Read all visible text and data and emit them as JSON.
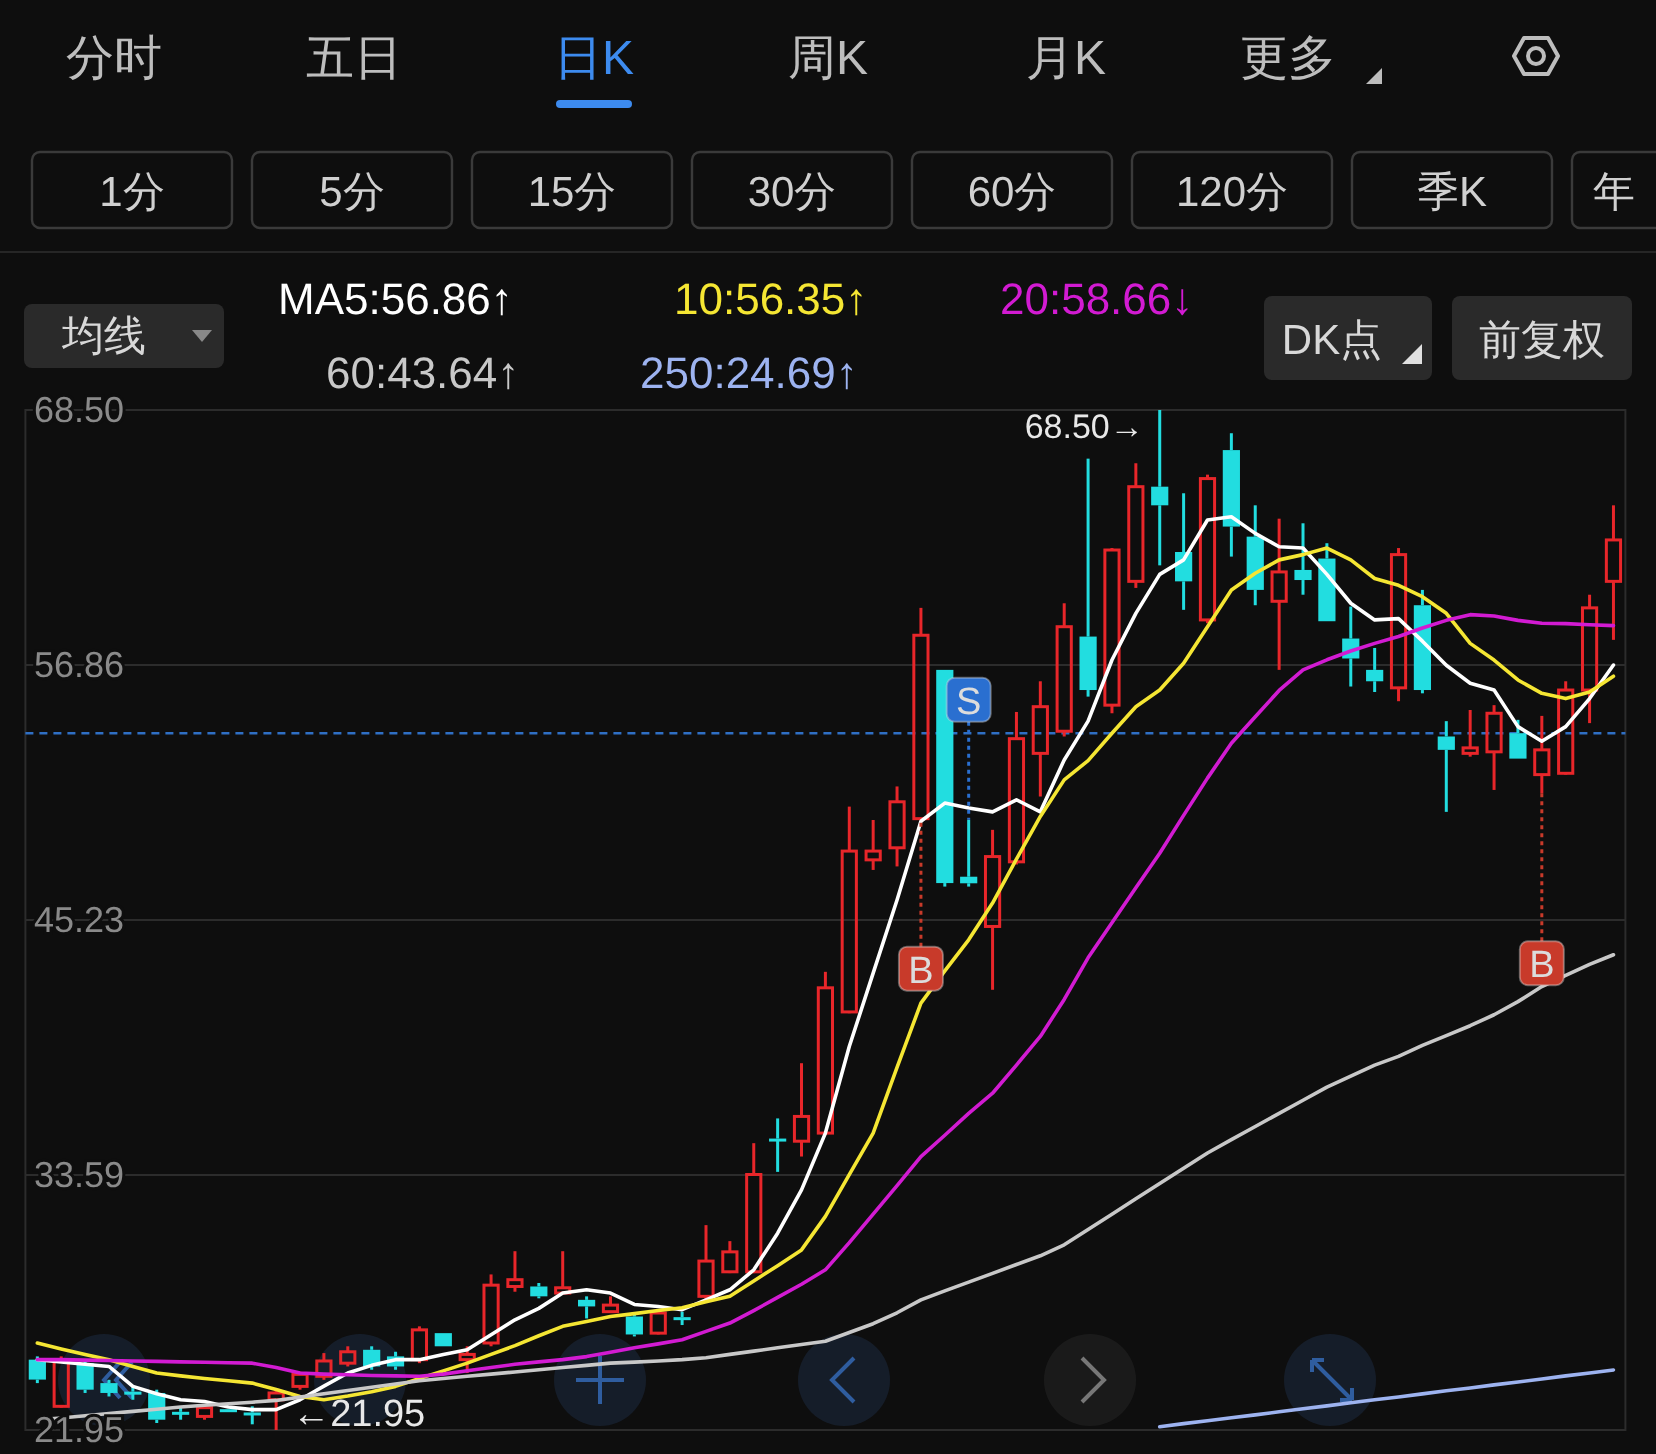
{
  "chart_data": {
    "type": "candlestick",
    "legend": "top",
    "grid": "y",
    "categories": [
      null,
      null,
      null,
      null,
      null,
      null,
      null,
      null,
      null,
      null,
      null,
      null,
      null,
      null,
      null,
      null,
      null,
      null,
      null,
      null,
      null,
      null,
      null,
      null,
      null,
      null,
      null,
      null,
      null,
      null,
      null,
      null,
      null,
      null,
      null,
      null,
      null,
      null,
      null,
      null,
      null,
      null,
      null,
      null,
      null,
      null,
      null,
      null,
      null,
      null,
      null,
      null,
      null,
      null,
      null,
      null,
      null,
      null,
      null,
      null,
      null,
      null,
      null,
      null,
      null,
      null,
      null
    ],
    "ohlc": [
      [
        25.16,
        25.31,
        24.09,
        24.25
      ],
      [
        23.03,
        25.31,
        22.97,
        25.16
      ],
      [
        25.0,
        25.16,
        23.64,
        23.79
      ],
      [
        24.09,
        24.24,
        23.48,
        23.64
      ],
      [
        23.7,
        23.94,
        23.33,
        23.64
      ],
      [
        23.64,
        23.79,
        22.27,
        22.42
      ],
      [
        22.78,
        23.03,
        22.42,
        22.72
      ],
      [
        22.57,
        23.09,
        22.42,
        22.97
      ],
      [
        22.9,
        22.9,
        22.85,
        22.85
      ],
      [
        22.75,
        23.03,
        22.21,
        22.7
      ],
      [
        23.33,
        23.79,
        21.95,
        23.64
      ],
      [
        23.94,
        24.61,
        23.79,
        24.49
      ],
      [
        24.4,
        25.46,
        24.24,
        25.1
      ],
      [
        25.0,
        25.77,
        24.85,
        25.52
      ],
      [
        25.61,
        25.77,
        24.7,
        24.85
      ],
      [
        25.31,
        25.52,
        24.7,
        24.85
      ],
      [
        25.16,
        26.68,
        25.0,
        26.52
      ],
      [
        26.37,
        26.37,
        25.77,
        25.77
      ],
      [
        25.16,
        25.77,
        24.55,
        25.4
      ],
      [
        25.92,
        29.05,
        25.77,
        28.56
      ],
      [
        28.5,
        30.11,
        28.26,
        28.81
      ],
      [
        28.5,
        28.66,
        27.96,
        28.05
      ],
      [
        28.2,
        30.11,
        28.14,
        28.44
      ],
      [
        27.89,
        28.05,
        27.04,
        27.59
      ],
      [
        27.35,
        28.05,
        27.29,
        27.65
      ],
      [
        27.13,
        27.23,
        26.22,
        26.31
      ],
      [
        26.37,
        27.44,
        26.31,
        27.29
      ],
      [
        27.1,
        27.35,
        26.74,
        27.04
      ],
      [
        28.05,
        31.3,
        27.89,
        29.66
      ],
      [
        29.17,
        30.57,
        29.11,
        30.08
      ],
      [
        29.17,
        35.04,
        29.11,
        33.61
      ],
      [
        35.25,
        36.17,
        33.73,
        35.19
      ],
      [
        35.13,
        38.69,
        34.43,
        36.26
      ],
      [
        35.5,
        42.86,
        35.41,
        42.13
      ],
      [
        41.03,
        50.4,
        40.97,
        48.37
      ],
      [
        47.97,
        49.79,
        47.51,
        48.37
      ],
      [
        48.52,
        51.32,
        47.67,
        50.62
      ],
      [
        49.85,
        59.47,
        49.85,
        58.22
      ],
      [
        56.64,
        56.64,
        46.75,
        46.91
      ],
      [
        47.2,
        49.8,
        46.75,
        46.9
      ],
      [
        44.93,
        49.34,
        42.04,
        48.12
      ],
      [
        47.88,
        54.72,
        47.76,
        53.5
      ],
      [
        52.83,
        56.12,
        50.86,
        54.96
      ],
      [
        53.84,
        59.68,
        53.6,
        58.61
      ],
      [
        58.16,
        66.28,
        55.42,
        55.72
      ],
      [
        55.03,
        62.2,
        54.66,
        62.11
      ],
      [
        60.68,
        66.07,
        60.38,
        65.0
      ],
      [
        65.0,
        68.5,
        61.41,
        64.15
      ],
      [
        62.02,
        64.7,
        59.38,
        60.68
      ],
      [
        58.92,
        65.55,
        58.77,
        65.37
      ],
      [
        66.67,
        67.44,
        61.81,
        63.18
      ],
      [
        62.72,
        64.15,
        59.59,
        60.29
      ],
      [
        59.77,
        63.54,
        56.64,
        61.11
      ],
      [
        61.2,
        63.33,
        60.07,
        60.74
      ],
      [
        61.72,
        62.42,
        58.86,
        58.86
      ],
      [
        58.07,
        59.53,
        55.88,
        57.16
      ],
      [
        56.64,
        57.64,
        55.63,
        56.12
      ],
      [
        55.82,
        62.2,
        55.21,
        61.9
      ],
      [
        59.59,
        60.29,
        55.57,
        55.72
      ],
      [
        53.6,
        54.3,
        50.16,
        52.99
      ],
      [
        52.83,
        54.81,
        52.68,
        53.08
      ],
      [
        52.9,
        55.03,
        51.16,
        54.66
      ],
      [
        53.75,
        54.36,
        52.59,
        52.59
      ],
      [
        51.86,
        54.54,
        51.01,
        52.99
      ],
      [
        51.92,
        56.12,
        51.86,
        55.72
      ],
      [
        55.72,
        60.07,
        54.21,
        59.47
      ],
      [
        60.68,
        64.15,
        58.01,
        62.57
      ]
    ],
    "series": [
      {
        "name": "MA5:56.86↑",
        "type": "line",
        "color": "#ffffff",
        "values": [
          25.16,
          25.05,
          24.95,
          24.85,
          23.94,
          23.6,
          23.33,
          23.25,
          23.0,
          22.88,
          22.88,
          23.33,
          23.95,
          24.55,
          24.9,
          25.16,
          25.16,
          25.4,
          25.61,
          26.3,
          26.98,
          27.5,
          28.2,
          28.35,
          28.2,
          27.68,
          27.59,
          27.44,
          27.89,
          28.35,
          29.26,
          30.93,
          32.91,
          35.5,
          39.45,
          42.8,
          46.14,
          49.73,
          50.56,
          50.34,
          50.16,
          50.71,
          50.16,
          52.53,
          54.3,
          57.09,
          59.22,
          61.0,
          61.66,
          63.48,
          63.63,
          62.87,
          62.26,
          62.2,
          61.0,
          59.68,
          58.92,
          58.98,
          57.95,
          56.85,
          56.03,
          55.72,
          54.05,
          53.38,
          54.05,
          55.33,
          56.86
        ]
      },
      {
        "name": "10:56.35↑",
        "type": "line",
        "color": "#f5e633",
        "values": [
          25.92,
          25.65,
          25.4,
          25.16,
          24.85,
          24.55,
          24.42,
          24.3,
          24.2,
          24.09,
          23.8,
          23.48,
          23.33,
          23.5,
          23.7,
          23.94,
          24.3,
          24.65,
          25.0,
          25.4,
          25.8,
          26.25,
          26.68,
          26.9,
          27.13,
          27.26,
          27.4,
          27.53,
          27.8,
          28.05,
          28.75,
          29.45,
          30.17,
          31.7,
          33.6,
          35.5,
          38.5,
          41.43,
          42.9,
          44.32,
          46.0,
          48.0,
          49.95,
          51.62,
          52.5,
          53.75,
          54.96,
          55.72,
          56.94,
          58.61,
          60.29,
          61.05,
          61.66,
          61.9,
          62.2,
          61.66,
          60.81,
          60.5,
          59.98,
          59.22,
          57.85,
          57.09,
          56.18,
          55.57,
          55.33,
          55.63,
          56.35
        ]
      },
      {
        "name": "20:58.66↓",
        "type": "line",
        "color": "#d21bd2",
        "values": [
          25.16,
          25.16,
          25.14,
          25.12,
          25.1,
          25.08,
          25.06,
          25.04,
          25.02,
          25.0,
          24.8,
          24.55,
          24.5,
          24.47,
          24.44,
          24.42,
          24.4,
          24.5,
          24.65,
          24.8,
          24.95,
          25.06,
          25.16,
          25.3,
          25.5,
          25.7,
          25.88,
          26.07,
          26.45,
          26.83,
          27.4,
          28.0,
          28.6,
          29.26,
          30.5,
          31.8,
          33.1,
          34.43,
          35.4,
          36.4,
          37.32,
          38.6,
          39.91,
          41.6,
          43.5,
          45.1,
          46.7,
          48.27,
          50.0,
          51.7,
          53.29,
          54.5,
          55.7,
          56.64,
          57.1,
          57.5,
          57.85,
          58.16,
          58.55,
          58.9,
          59.16,
          59.1,
          58.9,
          58.77,
          58.75,
          58.7,
          58.66
        ]
      },
      {
        "name": "60:43.64↑",
        "type": "line",
        "color": "#c8c8c8",
        "values": [
          22.42,
          22.5,
          22.6,
          22.7,
          22.8,
          22.9,
          23.0,
          23.08,
          23.15,
          23.22,
          23.3,
          23.45,
          23.6,
          23.75,
          23.9,
          24.05,
          24.2,
          24.3,
          24.4,
          24.5,
          24.6,
          24.7,
          24.8,
          24.9,
          25.0,
          25.05,
          25.1,
          25.16,
          25.25,
          25.4,
          25.55,
          25.7,
          25.85,
          26.0,
          26.4,
          26.8,
          27.3,
          27.89,
          28.3,
          28.7,
          29.1,
          29.5,
          29.9,
          30.4,
          31.1,
          31.8,
          32.5,
          33.2,
          33.9,
          34.59,
          35.2,
          35.8,
          36.4,
          37.0,
          37.6,
          38.1,
          38.6,
          39.0,
          39.5,
          39.95,
          40.4,
          40.9,
          41.5,
          42.19,
          42.7,
          43.2,
          43.64
        ]
      },
      {
        "name": "250:24.69↑",
        "type": "line",
        "color": "#9db3f0",
        "values": [
          null,
          null,
          null,
          null,
          null,
          null,
          null,
          null,
          null,
          null,
          null,
          null,
          null,
          null,
          null,
          null,
          null,
          null,
          null,
          null,
          null,
          null,
          null,
          null,
          null,
          null,
          null,
          null,
          null,
          null,
          null,
          null,
          null,
          null,
          null,
          null,
          null,
          null,
          null,
          null,
          null,
          null,
          null,
          null,
          null,
          null,
          null,
          22.1,
          22.24,
          22.37,
          22.51,
          22.64,
          22.78,
          22.92,
          23.05,
          23.19,
          23.33,
          23.46,
          23.6,
          23.74,
          23.87,
          24.01,
          24.14,
          24.28,
          24.42,
          24.55,
          24.69
        ]
      }
    ],
    "ylim": [
      21.95,
      68.5
    ],
    "yticks": [
      {
        "value": 68.5,
        "label": "68.50"
      },
      56.86,
      45.23,
      33.59,
      21.95
    ],
    "ref_lines": [
      {
        "axis": "y",
        "value": 53.75,
        "color": "#2f6fc4",
        "line_style": "dashed"
      }
    ],
    "annotations": [
      "分时",
      "五日",
      "日K",
      "周K",
      "月K",
      "更多",
      "1分",
      "5分",
      "15分",
      "30分",
      "60分",
      "120分",
      "季K",
      "年",
      "均线",
      "DK点",
      "前复权",
      "68.50→",
      "←21.95",
      "S",
      "B",
      "B"
    ]
  }
}
